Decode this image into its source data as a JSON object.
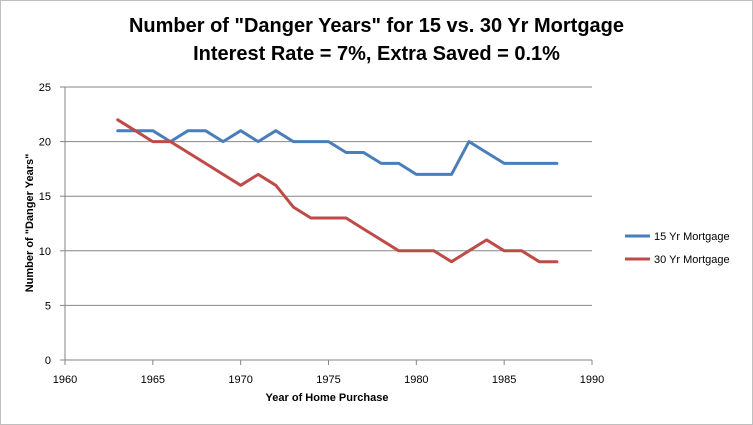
{
  "chart_data": {
    "type": "line",
    "title": "Number of \"Danger Years\" for 15 vs. 30 Yr Mortgage",
    "subtitle": "Interest Rate = 7%, Extra Saved = 0.1%",
    "xlabel": "Year of Home Purchase",
    "ylabel": "Number of \"Danger Years\"",
    "xlim": [
      1960,
      1990
    ],
    "ylim": [
      0,
      25
    ],
    "xticks": [
      1960,
      1965,
      1970,
      1975,
      1980,
      1985,
      1990
    ],
    "yticks": [
      0,
      5,
      10,
      15,
      20,
      25
    ],
    "grid": true,
    "legend_position": "right",
    "x": [
      1963,
      1964,
      1965,
      1966,
      1967,
      1968,
      1969,
      1970,
      1971,
      1972,
      1973,
      1974,
      1975,
      1976,
      1977,
      1978,
      1979,
      1980,
      1981,
      1982,
      1983,
      1984,
      1985,
      1986,
      1987,
      1988
    ],
    "series": [
      {
        "name": "15 Yr Mortgage",
        "color": "#4a7ebb",
        "values": [
          21,
          21,
          21,
          20,
          21,
          21,
          20,
          21,
          20,
          21,
          20,
          20,
          20,
          19,
          19,
          18,
          18,
          17,
          17,
          17,
          20,
          19,
          18,
          18,
          18,
          18
        ]
      },
      {
        "name": "30 Yr Mortgage",
        "color": "#be4b48",
        "values": [
          22,
          21,
          20,
          20,
          19,
          18,
          17,
          16,
          17,
          16,
          14,
          13,
          13,
          13,
          12,
          11,
          10,
          10,
          10,
          9,
          10,
          11,
          10,
          10,
          9,
          9
        ]
      }
    ]
  }
}
